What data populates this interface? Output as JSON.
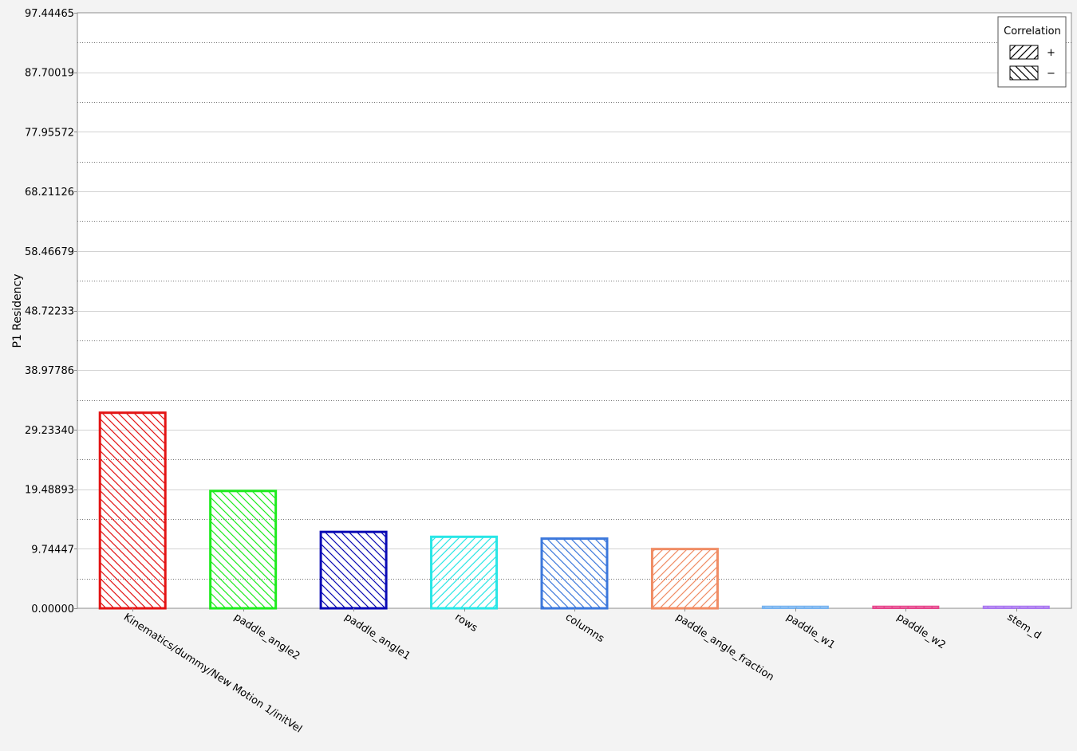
{
  "chart_data": {
    "type": "bar",
    "ylabel": "P1 Residency",
    "ylim": [
      0.0,
      97.44465
    ],
    "yticks": [
      "0.00000",
      "9.74447",
      "19.48893",
      "29.23340",
      "38.97786",
      "48.72233",
      "58.46679",
      "68.21126",
      "77.95572",
      "87.70019",
      "97.44465"
    ],
    "grid": true,
    "categories": [
      "Kinematics/dummy/New Motion 1/initVel",
      "paddle_angle2",
      "paddle_angle1",
      "rows",
      "columns",
      "paddle_angle_fraction",
      "paddle_w1",
      "paddle_w2",
      "stem_d"
    ],
    "values": [
      32.0,
      19.2,
      12.5,
      11.7,
      11.4,
      9.7,
      0.3,
      0.3,
      0.3
    ],
    "correlation": [
      "-",
      "-",
      "-",
      "+",
      "-",
      "+",
      "+",
      "+",
      "+"
    ],
    "colors": [
      "#e31414",
      "#1eeb1e",
      "#0a0ab4",
      "#28e6e6",
      "#3c78dc",
      "#f08c64",
      "#78b4f0",
      "#e6468c",
      "#aa78f0"
    ],
    "legend": {
      "title": "Correlation",
      "position": "top-right",
      "entries": [
        {
          "label": "+",
          "hatch": "forward"
        },
        {
          "label": "−",
          "hatch": "backward"
        }
      ]
    }
  }
}
